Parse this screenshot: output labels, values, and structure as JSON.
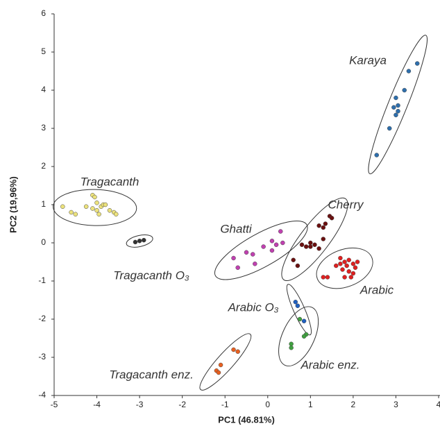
{
  "chart_data": {
    "type": "scatter",
    "x_label": "PC1 (46.81%)",
    "y_label": "PC2 (19,96%)",
    "xlim": [
      -5,
      4
    ],
    "xticks": [
      -5,
      -4,
      -3,
      -2,
      -1,
      0,
      1,
      2,
      3,
      4
    ],
    "ylim": [
      -4,
      6
    ],
    "yticks": [
      -4,
      -3,
      -2,
      -1,
      0,
      1,
      2,
      3,
      4,
      5,
      6
    ],
    "grid": false,
    "series": [
      {
        "name": "Karaya",
        "color": "#2e6fad",
        "x": [
          3.5,
          3.3,
          3.2,
          3.0,
          3.05,
          2.95,
          3.05,
          3.0,
          2.85,
          2.55
        ],
        "values": [
          4.7,
          4.5,
          4.0,
          3.8,
          3.6,
          3.55,
          3.45,
          3.35,
          3.0,
          2.3
        ]
      },
      {
        "name": "Tragacanth",
        "color": "#ece27c",
        "x": [
          -4.8,
          -4.6,
          -4.5,
          -4.1,
          -4.05,
          -4.0,
          -3.9,
          -3.85,
          -4.1,
          -4.0,
          -3.95,
          -3.8,
          -3.7,
          -3.6,
          -3.55,
          -4.25
        ],
        "values": [
          0.95,
          0.8,
          0.75,
          1.25,
          1.2,
          1.05,
          0.95,
          1.0,
          0.9,
          0.85,
          0.75,
          1.0,
          0.85,
          0.8,
          0.75,
          0.95
        ]
      },
      {
        "name": "Tragacanth O₃",
        "color": "#333333",
        "x": [
          -3.1,
          -3.0,
          -2.9
        ],
        "values": [
          0.02,
          0.05,
          0.07
        ]
      },
      {
        "name": "Ghatti",
        "color": "#c040b0",
        "x": [
          -0.8,
          -0.7,
          -0.5,
          -0.3,
          -0.35,
          0.1,
          0.2,
          0.3,
          0.35,
          0.1,
          -0.1
        ],
        "values": [
          -0.4,
          -0.65,
          -0.25,
          -0.55,
          -0.3,
          0.05,
          -0.05,
          0.3,
          0.0,
          -0.2,
          -0.1
        ]
      },
      {
        "name": "Cherry",
        "color": "#6b1010",
        "x": [
          0.6,
          0.7,
          0.8,
          0.9,
          1.0,
          1.1,
          1.2,
          1.3,
          1.3,
          1.35,
          1.45,
          1.5,
          1.2,
          1.0
        ],
        "values": [
          -0.45,
          -0.6,
          -0.05,
          -0.1,
          -0.1,
          -0.05,
          -0.15,
          0.1,
          0.4,
          0.5,
          0.7,
          0.65,
          0.45,
          0.0
        ]
      },
      {
        "name": "Arabic",
        "color": "#e02020",
        "x": [
          1.7,
          1.8,
          1.85,
          1.9,
          2.0,
          2.05,
          1.75,
          1.9,
          2.0,
          1.6,
          1.95,
          1.8,
          2.1,
          1.3,
          1.4,
          1.7
        ],
        "values": [
          -0.4,
          -0.5,
          -0.6,
          -0.45,
          -0.55,
          -0.65,
          -0.7,
          -0.75,
          -0.8,
          -0.6,
          -0.9,
          -0.9,
          -0.5,
          -0.9,
          -0.9,
          -0.55
        ]
      },
      {
        "name": "Arabic O₃",
        "color": "#2060c0",
        "x": [
          0.65,
          0.7,
          0.85
        ],
        "values": [
          -1.55,
          -1.65,
          -2.05
        ]
      },
      {
        "name": "Arabic enz.",
        "color": "#40a040",
        "x": [
          0.75,
          0.9,
          0.85,
          0.55,
          0.55
        ],
        "values": [
          -2.0,
          -2.4,
          -2.45,
          -2.65,
          -2.75
        ]
      },
      {
        "name": "Tragacanth enz.",
        "color": "#e86020",
        "x": [
          -0.8,
          -0.7,
          -1.1,
          -1.2,
          -1.15
        ],
        "values": [
          -2.8,
          -2.85,
          -3.2,
          -3.35,
          -3.4
        ]
      }
    ]
  }
}
